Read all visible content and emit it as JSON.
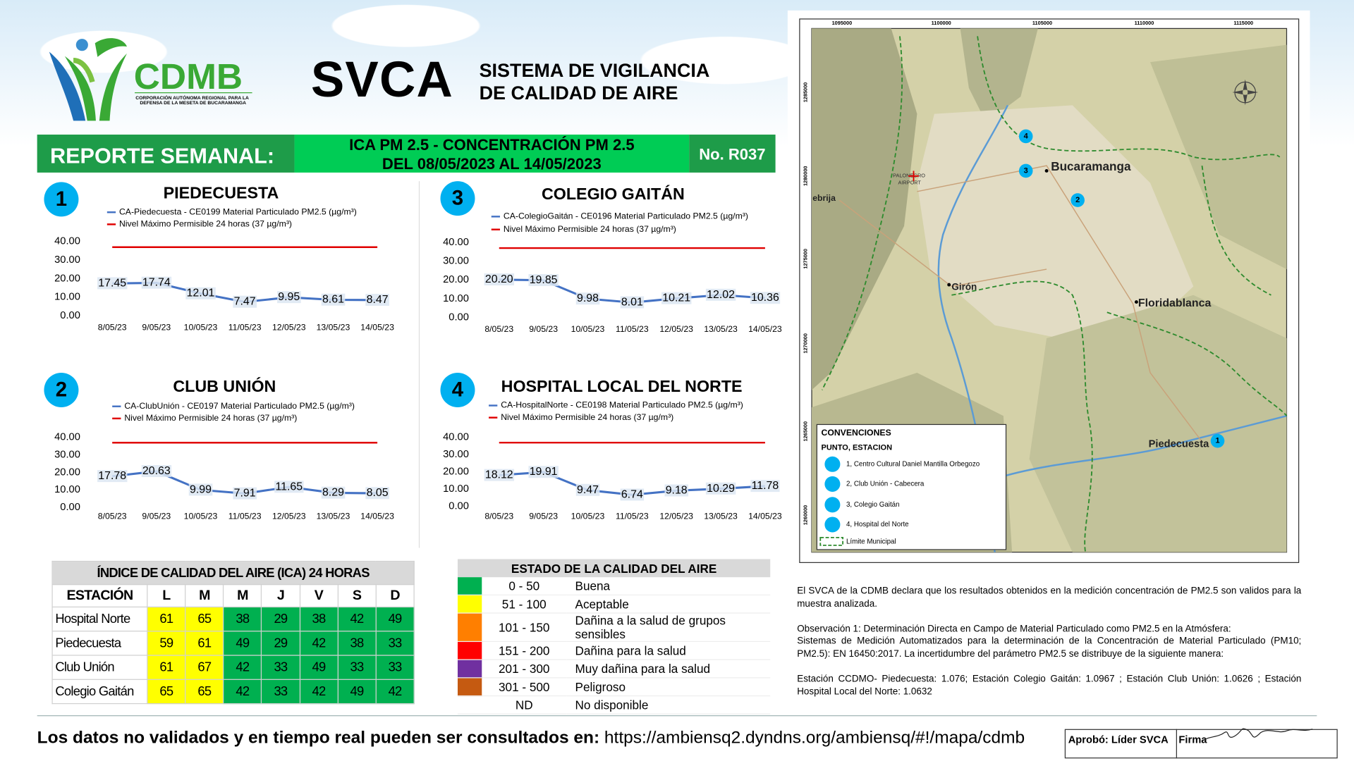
{
  "header": {
    "logo_name": "CDMB",
    "logo_subtitle": [
      "CORPORACIÓN AUTÓNOMA REGIONAL PARA LA",
      "DEFENSA DE LA MESETA DE BUCARAMANGA"
    ],
    "acronym": "SVCA",
    "title_lines": [
      "SISTEMA DE VIGILANCIA",
      "DE CALIDAD DE AIRE"
    ]
  },
  "report": {
    "label": "REPORTE SEMANAL:",
    "title_lines": [
      "ICA PM 2.5 - CONCENTRACIÓN PM 2.5",
      "DEL 08/05/2023 AL 14/05/2023"
    ],
    "number": "No. R037"
  },
  "chart_data": [
    {
      "type": "line",
      "badge": "1",
      "title": "PIEDECUESTA",
      "categories": [
        "8/05/23",
        "9/05/23",
        "10/05/23",
        "11/05/23",
        "12/05/23",
        "13/05/23",
        "14/05/23"
      ],
      "series": [
        {
          "name": "CA-Piedecuesta - CE0199 Material Particulado PM2.5 (µg/m³)",
          "color": "#4472c4",
          "show_labels": true,
          "values": [
            17.45,
            17.74,
            12.01,
            7.47,
            9.95,
            8.61,
            8.47
          ]
        },
        {
          "name": "Nivel Máximo Permisible 24 horas (37 µg/m³)",
          "color": "#e00000",
          "values": [
            37,
            37,
            37,
            37,
            37,
            37,
            37
          ]
        }
      ],
      "ylim": [
        0,
        40
      ],
      "yticks": [
        {
          "value": 0,
          "label": "0.00"
        },
        {
          "value": 10,
          "label": "10.00"
        },
        {
          "value": 20,
          "label": "20.00"
        },
        {
          "value": 30,
          "label": "30.00"
        },
        {
          "value": 40,
          "label": "40.00"
        }
      ]
    },
    {
      "type": "line",
      "badge": "2",
      "title": "CLUB UNIÓN",
      "categories": [
        "8/05/23",
        "9/05/23",
        "10/05/23",
        "11/05/23",
        "12/05/23",
        "13/05/23",
        "14/05/23"
      ],
      "series": [
        {
          "name": "CA-ClubUnión - CE0197 Material Particulado PM2.5 (µg/m³)",
          "color": "#4472c4",
          "show_labels": true,
          "values": [
            17.78,
            20.63,
            9.99,
            7.91,
            11.65,
            8.29,
            8.05
          ]
        },
        {
          "name": "Nivel Máximo Permisible 24 horas (37 µg/m³)",
          "color": "#e00000",
          "values": [
            37,
            37,
            37,
            37,
            37,
            37,
            37
          ]
        }
      ],
      "ylim": [
        0,
        40
      ],
      "yticks": [
        {
          "value": 0,
          "label": "0.00"
        },
        {
          "value": 10,
          "label": "10.00"
        },
        {
          "value": 20,
          "label": "20.00"
        },
        {
          "value": 30,
          "label": "30.00"
        },
        {
          "value": 40,
          "label": "40.00"
        }
      ]
    },
    {
      "type": "line",
      "badge": "3",
      "title": "COLEGIO GAITÁN",
      "categories": [
        "8/05/23",
        "9/05/23",
        "10/05/23",
        "11/05/23",
        "12/05/23",
        "13/05/23",
        "14/05/23"
      ],
      "series": [
        {
          "name": "CA-ColegioGaitán - CE0196 Material Particulado PM2.5 (µg/m³)",
          "color": "#4472c4",
          "show_labels": true,
          "values": [
            20.2,
            19.85,
            9.98,
            8.01,
            10.21,
            12.02,
            10.36
          ],
          "value_labels": [
            "20.20",
            "19.85",
            "9.98",
            "8.01",
            "10.21",
            "12.02",
            "10.36"
          ]
        },
        {
          "name": "Nivel Máximo Permisible 24 horas (37 µg/m³)",
          "color": "#e00000",
          "values": [
            37,
            37,
            37,
            37,
            37,
            37,
            37
          ]
        }
      ],
      "ylim": [
        0,
        40
      ],
      "yticks": [
        {
          "value": 0,
          "label": "0.00"
        },
        {
          "value": 10,
          "label": "10.00"
        },
        {
          "value": 20,
          "label": "20.00"
        },
        {
          "value": 30,
          "label": "30.00"
        },
        {
          "value": 40,
          "label": "40.00"
        }
      ]
    },
    {
      "type": "line",
      "badge": "4",
      "title": "HOSPITAL LOCAL DEL NORTE",
      "categories": [
        "8/05/23",
        "9/05/23",
        "10/05/23",
        "11/05/23",
        "12/05/23",
        "13/05/23",
        "14/05/23"
      ],
      "series": [
        {
          "name": "CA-HospitalNorte - CE0198 Material Particulado PM2.5 (µg/m³)",
          "color": "#4472c4",
          "show_labels": true,
          "values": [
            18.12,
            19.91,
            9.47,
            6.74,
            9.18,
            10.29,
            11.78
          ]
        },
        {
          "name": "Nivel Máximo Permisible 24 horas (37 µg/m³)",
          "color": "#e00000",
          "values": [
            37,
            37,
            37,
            37,
            37,
            37,
            37
          ]
        }
      ],
      "ylim": [
        0,
        40
      ],
      "yticks": [
        {
          "value": 0,
          "label": "0.00"
        },
        {
          "value": 10,
          "label": "10.00"
        },
        {
          "value": 20,
          "label": "20.00"
        },
        {
          "value": 30,
          "label": "30.00"
        },
        {
          "value": 40,
          "label": "40.00"
        }
      ]
    }
  ],
  "ica_table": {
    "title": "ÍNDICE DE CALIDAD DEL AIRE (ICA) 24 HORAS",
    "header": [
      "ESTACIÓN",
      "L",
      "M",
      "M",
      "J",
      "V",
      "S",
      "D"
    ],
    "rows": [
      [
        "Hospital Norte",
        61,
        65,
        38,
        29,
        38,
        42,
        49
      ],
      [
        "Piedecuesta",
        59,
        61,
        49,
        29,
        42,
        38,
        33
      ],
      [
        "Club Unión",
        61,
        67,
        42,
        33,
        49,
        33,
        33
      ],
      [
        "Colegio Gaitán",
        65,
        65,
        42,
        33,
        42,
        49,
        42
      ]
    ]
  },
  "quality_legend": {
    "title": "ESTADO DE LA CALIDAD DEL AIRE",
    "rows": [
      {
        "range": "0 - 50",
        "label": "Buena",
        "color": "#00b050"
      },
      {
        "range": "51 - 100",
        "label": "Aceptable",
        "color": "#ffff00"
      },
      {
        "range": "101 - 150",
        "label": "Dañina a la salud de grupos sensibles",
        "color": "#ff7f00"
      },
      {
        "range": "151 - 200",
        "label": "Dañina para la salud",
        "color": "#ff0000"
      },
      {
        "range": "201 - 300",
        "label": "Muy dañina para la salud",
        "color": "#7030a0"
      },
      {
        "range": "301 - 500",
        "label": "Peligroso",
        "color": "#c55a11"
      },
      {
        "range": "ND",
        "label": "No disponible"
      }
    ]
  },
  "map": {
    "x_ticks": [
      "1095000",
      "1100000",
      "1105000",
      "1110000",
      "1115000"
    ],
    "y_ticks": [
      "1285000",
      "1280000",
      "1275000",
      "1270000",
      "1265000",
      "1260000"
    ],
    "places": [
      "Bucaramanga",
      "Floridablanca",
      "Girón",
      "Piedecuesta",
      "ebrija"
    ],
    "airport": [
      "PALONEGRO",
      "AIRPORT"
    ],
    "stations": [
      "1",
      "2",
      "3",
      "4"
    ],
    "legend": {
      "title": "CONVENCIONES",
      "subtitle": "PUNTO, ESTACION",
      "items": [
        "1, Centro Cultural Daniel Mantilla Orbegozo",
        "2, Club Unión - Cabecera",
        "3, Colegio Gaitán",
        "4, Hospital del Norte"
      ],
      "boundary": "Límite Municipal"
    }
  },
  "notes": [
    "El SVCA  de la CDMB declara que los resultados obtenidos en la medición concentración de PM2.5 son validos para la muestra  analizada.",
    "Observación 1: Determinación Directa en Campo de Material Particulado como PM2.5 en la Atmósfera:",
    "Sistemas de Medición Automatizados para la  determinación de la Concentración de Material Particulado (PM10; PM2.5): EN 16450:2017. La incertidumbre del parámetro PM2.5 se distribuye de la siguiente manera:",
    "Estación CCDMO- Piedecuesta: 1.076; Estación Colegio Gaitán: 1.0967 ; Estación Club Unión: 1.0626 ; Estación Hospital Local del Norte: 1.0632"
  ],
  "footer": {
    "lead": "Los datos no validados y en tiempo real pueden ser consultados en:",
    "url": "https://ambiensq2.dyndns.org/ambiensq/#!/mapa/cdmb",
    "approved": "Aprobó: Líder SVCA",
    "signature": "Firma"
  }
}
